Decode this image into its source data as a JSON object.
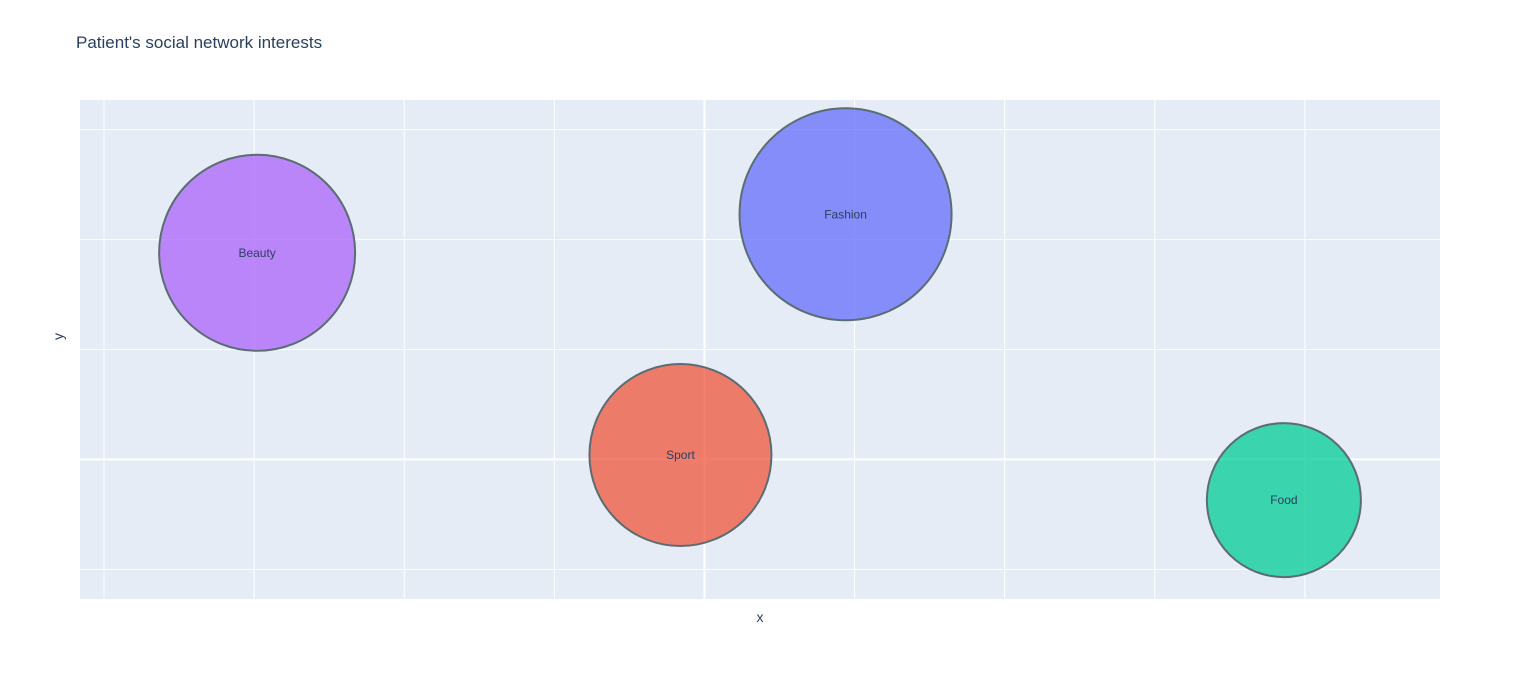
{
  "chart_data": {
    "type": "scatter",
    "title": "Patient's social network interests",
    "xlabel": "x",
    "ylabel": "y",
    "grid": true,
    "xlim": [
      -0.08,
      4.45
    ],
    "ylim": [
      -0.27,
      4.27
    ],
    "x_gridlines": [
      0,
      0.5,
      1,
      1.5,
      2,
      2.5,
      3,
      3.5,
      4
    ],
    "y_gridlines": [
      0,
      1,
      2,
      3,
      4
    ],
    "series": [
      {
        "name": "Beauty",
        "x": 0.51,
        "y": 2.88,
        "size": 196,
        "color": "#ab63fa"
      },
      {
        "name": "Sport",
        "x": 1.92,
        "y": 1.04,
        "size": 182,
        "color": "#ef553b"
      },
      {
        "name": "Fashion",
        "x": 2.47,
        "y": 3.23,
        "size": 212,
        "color": "#636efa"
      },
      {
        "name": "Food",
        "x": 3.93,
        "y": 0.63,
        "size": 154,
        "color": "#00cc96"
      }
    ]
  }
}
